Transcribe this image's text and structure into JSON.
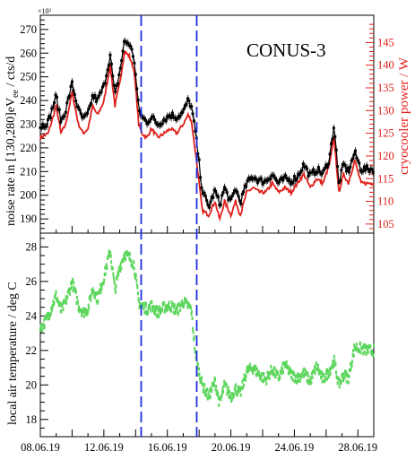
{
  "chart_data": [
    {
      "type": "line",
      "title": "CONUS-3",
      "ylabel": "noise rate in [130,280]eV",
      "ylabel_sub": "ee",
      "ylabel_unit": " / cts/d",
      "y_exponent": "×10³",
      "ylim": [
        184,
        276
      ],
      "yticks": [
        "190",
        "200",
        "210",
        "220",
        "230",
        "240",
        "250",
        "260",
        "270"
      ],
      "y2label": "cryocooler power / W",
      "y2lim": [
        103,
        151
      ],
      "y2ticks": [
        "105",
        "110",
        "115",
        "120",
        "125",
        "130",
        "135",
        "140",
        "145"
      ],
      "xlim": [
        "2019-06-08",
        "2019-06-29"
      ],
      "series": [
        {
          "axis": "left",
          "color": "#000000",
          "style": "points-with-errorbars",
          "x": [
            8.0,
            8.5,
            9.0,
            9.3,
            9.6,
            10.0,
            10.4,
            10.7,
            11.0,
            11.3,
            11.6,
            12.0,
            12.4,
            12.7,
            13.0,
            13.3,
            13.6,
            13.9,
            14.2,
            14.4,
            14.7,
            15.0,
            15.4,
            15.8,
            16.2,
            16.6,
            17.0,
            17.3,
            17.5,
            17.8,
            18.2,
            18.6,
            19.0,
            19.3,
            19.6,
            20.0,
            20.3,
            20.6,
            21.0,
            21.4,
            21.8,
            22.2,
            22.6,
            23.0,
            23.4,
            23.8,
            24.2,
            24.6,
            25.0,
            25.4,
            25.8,
            26.2,
            26.5,
            26.8,
            27.1,
            27.4,
            27.8,
            28.2,
            28.6,
            29.0
          ],
          "y": [
            229,
            231,
            242,
            231,
            236,
            247,
            236,
            232,
            234,
            242,
            240,
            246,
            259,
            242,
            252,
            265,
            264,
            258,
            236,
            233,
            231,
            233,
            230,
            232,
            234,
            233,
            235,
            240,
            238,
            225,
            202,
            195,
            202,
            196,
            203,
            197,
            203,
            197,
            205,
            208,
            206,
            206,
            209,
            205,
            207,
            206,
            208,
            213,
            208,
            211,
            209,
            215,
            230,
            205,
            213,
            210,
            218,
            211,
            211,
            211
          ]
        },
        {
          "axis": "right",
          "color": "#e0201b",
          "style": "line",
          "x": [
            8.0,
            8.5,
            9.0,
            9.3,
            9.6,
            10.0,
            10.4,
            10.7,
            11.0,
            11.3,
            11.6,
            12.0,
            12.4,
            12.7,
            13.0,
            13.3,
            13.6,
            13.9,
            14.2,
            14.4,
            14.7,
            15.0,
            15.4,
            15.8,
            16.2,
            16.6,
            17.0,
            17.3,
            17.5,
            17.8,
            18.2,
            18.6,
            19.0,
            19.3,
            19.6,
            20.0,
            20.3,
            20.6,
            21.0,
            21.4,
            21.8,
            22.2,
            22.6,
            23.0,
            23.4,
            23.8,
            24.2,
            24.6,
            25.0,
            25.4,
            25.8,
            26.2,
            26.5,
            26.8,
            27.1,
            27.4,
            27.8,
            28.2,
            28.6,
            29.0
          ],
          "y": [
            124,
            125,
            131,
            125,
            127,
            134,
            127,
            125,
            126,
            131,
            129,
            132,
            140,
            131,
            136,
            143,
            142,
            139,
            127,
            125,
            124,
            126,
            124,
            125,
            126,
            125,
            127,
            129,
            128,
            120,
            108,
            107,
            110,
            106,
            110,
            107,
            110,
            107,
            112,
            113,
            112,
            112,
            114,
            112,
            113,
            112,
            114,
            116,
            113,
            115,
            114,
            118,
            124,
            112,
            116,
            114,
            119,
            114,
            114,
            114
          ]
        }
      ]
    },
    {
      "type": "scatter",
      "ylabel": "local air temperature / deg C",
      "ylim": [
        17,
        28.8
      ],
      "yticks": [
        "18",
        "20",
        "22",
        "24",
        "26",
        "28"
      ],
      "xlim": [
        "2019-06-08",
        "2019-06-29"
      ],
      "xticks": [
        "08.06.19",
        "12.06.19",
        "16.06.19",
        "20.06.19",
        "24.06.19",
        "28.06.19"
      ],
      "series": [
        {
          "color": "#5cd65c",
          "style": "points",
          "x": [
            8.0,
            8.5,
            9.0,
            9.3,
            9.6,
            10.0,
            10.4,
            10.7,
            11.0,
            11.3,
            11.6,
            12.0,
            12.4,
            12.7,
            13.0,
            13.3,
            13.6,
            13.9,
            14.2,
            14.4,
            14.7,
            15.0,
            15.4,
            15.8,
            16.2,
            16.6,
            17.0,
            17.3,
            17.5,
            17.8,
            18.2,
            18.6,
            19.0,
            19.3,
            19.6,
            20.0,
            20.3,
            20.6,
            21.0,
            21.4,
            21.8,
            22.2,
            22.6,
            23.0,
            23.4,
            23.8,
            24.2,
            24.6,
            25.0,
            25.4,
            25.8,
            26.2,
            26.5,
            26.8,
            27.1,
            27.4,
            27.8,
            28.2,
            28.6,
            29.0
          ],
          "y": [
            23.2,
            24.0,
            25.2,
            24.3,
            24.8,
            26.0,
            24.6,
            24.2,
            24.4,
            25.6,
            25.0,
            26.2,
            27.8,
            25.5,
            26.8,
            27.6,
            27.4,
            27.0,
            24.8,
            24.6,
            24.4,
            24.6,
            24.2,
            24.5,
            24.6,
            24.3,
            24.8,
            24.6,
            24.4,
            21.5,
            20.0,
            19.3,
            20.2,
            18.9,
            20.0,
            19.3,
            19.8,
            19.5,
            20.8,
            21.0,
            20.6,
            20.3,
            20.9,
            20.4,
            21.2,
            20.6,
            20.4,
            20.7,
            20.2,
            21.1,
            20.3,
            20.8,
            21.4,
            20.0,
            20.6,
            20.4,
            22.2,
            22.1,
            22.0,
            22.0
          ]
        }
      ]
    }
  ],
  "markers": {
    "vlines_x": [
      14.35,
      17.85
    ],
    "color": "#1f2ee0",
    "style": "dashed"
  }
}
